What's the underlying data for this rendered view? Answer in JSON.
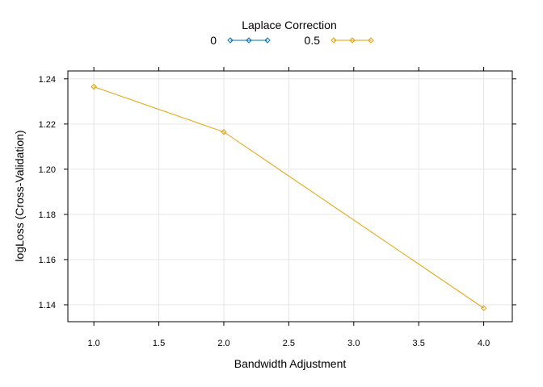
{
  "chart_data": {
    "type": "line",
    "title": "",
    "legend": {
      "title": "Laplace Correction",
      "placement": "top-center"
    },
    "xlabel": "Bandwidth Adjustment",
    "ylabel": "logLoss (Cross-Validation)",
    "xlim": [
      0.8,
      4.22
    ],
    "ylim": [
      1.1325,
      1.2435
    ],
    "xticks": [
      "1.0",
      "1.5",
      "2.0",
      "2.5",
      "3.0",
      "3.5",
      "4.0"
    ],
    "yticks": [
      "1.14",
      "1.16",
      "1.18",
      "1.20",
      "1.22",
      "1.24"
    ],
    "grid": true,
    "series": [
      {
        "name": "0",
        "color": "#0072B2",
        "x": [],
        "y": []
      },
      {
        "name": "0.5",
        "color": "#E69F00",
        "x": [
          1.0,
          2.0,
          4.0
        ],
        "y": [
          1.2365,
          1.2165,
          1.1385
        ]
      }
    ]
  }
}
